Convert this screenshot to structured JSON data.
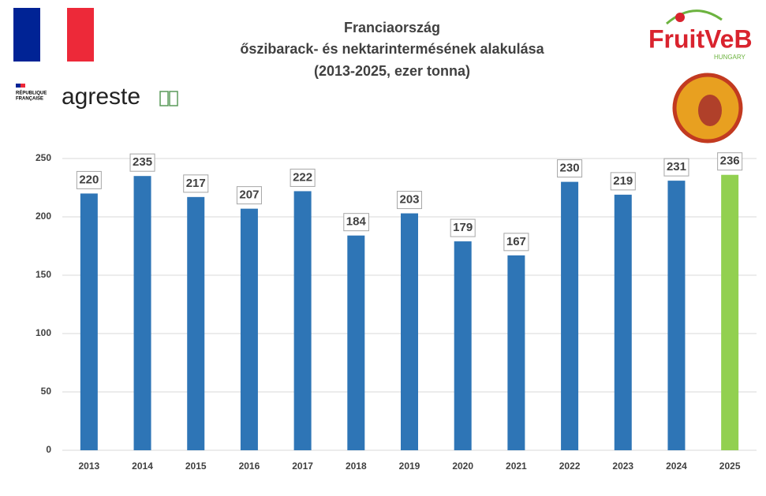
{
  "chart_data": {
    "type": "bar",
    "title": [
      "Franciaország",
      "őszibarack- és nektarintermésének alakulása",
      "(2013-2025, ezer tonna)"
    ],
    "categories": [
      "2013",
      "2014",
      "2015",
      "2016",
      "2017",
      "2018",
      "2019",
      "2020",
      "2021",
      "2022",
      "2023",
      "2024",
      "2025"
    ],
    "values": [
      220,
      235,
      217,
      207,
      222,
      184,
      203,
      179,
      167,
      230,
      219,
      231,
      236
    ],
    "colors": [
      "#2e75b6",
      "#2e75b6",
      "#2e75b6",
      "#2e75b6",
      "#2e75b6",
      "#2e75b6",
      "#2e75b6",
      "#2e75b6",
      "#2e75b6",
      "#2e75b6",
      "#2e75b6",
      "#2e75b6",
      "#92d050"
    ],
    "ylim": [
      0,
      250
    ],
    "yticks": [
      0,
      50,
      100,
      150,
      200,
      250
    ],
    "grid": true,
    "data_labels": true
  },
  "logos": {
    "republique": [
      "RÉPUBLIQUE",
      "FRANÇAISE"
    ],
    "agreste": "agreste",
    "fruitveb": "FruitVeB",
    "hungary": "HUNGARY"
  }
}
